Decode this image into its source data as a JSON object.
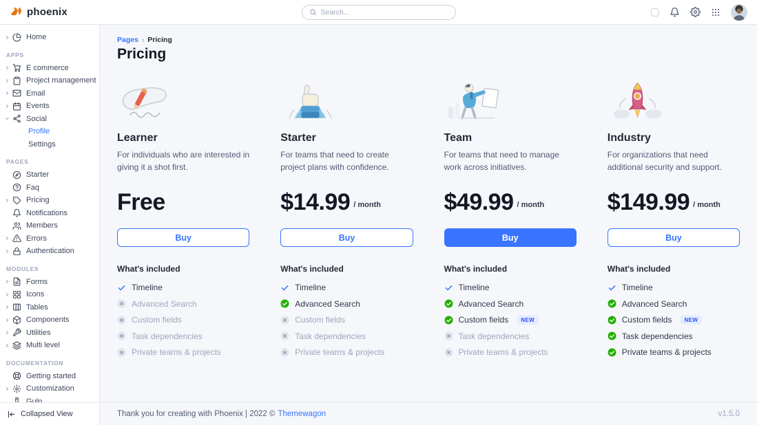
{
  "brand": {
    "name": "phoenix",
    "logo_icon": "phoenix-bird-icon"
  },
  "topbar": {
    "search": {
      "placeholder": "Search...",
      "icon": "search-icon"
    },
    "action_icons": [
      "theme-toggle",
      "bell-icon",
      "gear-icon",
      "apps-grid-icon",
      "avatar"
    ]
  },
  "colors": {
    "primary": "#3874ff",
    "success": "#23b000",
    "muted": "#9fa6bc",
    "background": "#f5f7fa"
  },
  "sidebar": {
    "sections": [
      {
        "label": null,
        "items": [
          {
            "label": "Home",
            "icon": "pie-chart-icon",
            "chevron": true
          }
        ]
      },
      {
        "label": "APPS",
        "items": [
          {
            "label": "E commerce",
            "icon": "cart-icon",
            "chevron": true
          },
          {
            "label": "Project management",
            "icon": "clipboard-icon",
            "chevron": true
          },
          {
            "label": "Email",
            "icon": "mail-icon",
            "chevron": true
          },
          {
            "label": "Events",
            "icon": "calendar-icon",
            "chevron": true
          },
          {
            "label": "Social",
            "icon": "share-icon",
            "chevron": true,
            "expanded": true,
            "children": [
              {
                "label": "Profile",
                "active": true
              },
              {
                "label": "Settings"
              }
            ]
          }
        ]
      },
      {
        "label": "PAGES",
        "items": [
          {
            "label": "Starter",
            "icon": "compass-icon"
          },
          {
            "label": "Faq",
            "icon": "help-circle-icon"
          },
          {
            "label": "Pricing",
            "icon": "tag-icon",
            "chevron": true
          },
          {
            "label": "Notifications",
            "icon": "bell-icon"
          },
          {
            "label": "Members",
            "icon": "users-icon"
          },
          {
            "label": "Errors",
            "icon": "alert-triangle-icon",
            "chevron": true
          },
          {
            "label": "Authentication",
            "icon": "lock-icon",
            "chevron": true
          }
        ]
      },
      {
        "label": "MODULES",
        "items": [
          {
            "label": "Forms",
            "icon": "file-text-icon",
            "chevron": true
          },
          {
            "label": "Icons",
            "icon": "grid-icon",
            "chevron": true
          },
          {
            "label": "Tables",
            "icon": "table-icon",
            "chevron": true
          },
          {
            "label": "Components",
            "icon": "package-icon",
            "chevron": true
          },
          {
            "label": "Utilities",
            "icon": "tool-icon",
            "chevron": true
          },
          {
            "label": "Multi level",
            "icon": "layers-icon",
            "chevron": true
          }
        ]
      },
      {
        "label": "DOCUMENTATION",
        "items": [
          {
            "label": "Getting started",
            "icon": "life-ring-icon"
          },
          {
            "label": "Customization",
            "icon": "settings-icon",
            "chevron": true
          },
          {
            "label": "Gulp",
            "icon": "cup-icon"
          }
        ]
      }
    ],
    "collapse": {
      "label": "Collapsed View",
      "icon": "collapse-panel-icon"
    }
  },
  "page": {
    "breadcrumb": [
      {
        "label": "Pages"
      },
      {
        "label": "Pricing"
      }
    ],
    "breadcrumb_separator": "›",
    "title": "Pricing",
    "whats_included_label": "What's included"
  },
  "plans": [
    {
      "name": "Learner",
      "illustration": "writing-hand",
      "description": "For individuals who are interested in giving it a shot first.",
      "price": "Free",
      "period": "",
      "button": {
        "label": "Buy",
        "variant": "outline"
      },
      "features": [
        {
          "label": "Timeline",
          "status": "basic"
        },
        {
          "label": "Advanced Search",
          "status": "excluded"
        },
        {
          "label": "Custom fields",
          "status": "excluded"
        },
        {
          "label": "Task dependencies",
          "status": "excluded"
        },
        {
          "label": "Private teams & projects",
          "status": "excluded"
        }
      ]
    },
    {
      "name": "Starter",
      "illustration": "thumbs-up",
      "description": "For teams that need to create project plans with confidence.",
      "price": "$14.99",
      "period": "/ month",
      "button": {
        "label": "Buy",
        "variant": "outline"
      },
      "features": [
        {
          "label": "Timeline",
          "status": "basic"
        },
        {
          "label": "Advanced Search",
          "status": "included"
        },
        {
          "label": "Custom fields",
          "status": "excluded"
        },
        {
          "label": "Task dependencies",
          "status": "excluded"
        },
        {
          "label": "Private teams & projects",
          "status": "excluded"
        }
      ]
    },
    {
      "name": "Team",
      "illustration": "presenting-person",
      "description": "For teams that need to manage work across initiatives.",
      "price": "$49.99",
      "period": "/ month",
      "button": {
        "label": "Buy",
        "variant": "solid"
      },
      "features": [
        {
          "label": "Timeline",
          "status": "basic"
        },
        {
          "label": "Advanced Search",
          "status": "included"
        },
        {
          "label": "Custom fields",
          "status": "included",
          "badge": "NEW"
        },
        {
          "label": "Task dependencies",
          "status": "excluded"
        },
        {
          "label": "Private teams & projects",
          "status": "excluded"
        }
      ]
    },
    {
      "name": "Industry",
      "illustration": "rocket-launch",
      "description": "For organizations that need additional security and support.",
      "price": "$149.99",
      "period": "/ month",
      "button": {
        "label": "Buy",
        "variant": "outline"
      },
      "features": [
        {
          "label": "Timeline",
          "status": "basic"
        },
        {
          "label": "Advanced Search",
          "status": "included"
        },
        {
          "label": "Custom fields",
          "status": "included",
          "badge": "NEW"
        },
        {
          "label": "Task dependencies",
          "status": "included"
        },
        {
          "label": "Private teams & projects",
          "status": "included"
        }
      ]
    }
  ],
  "footer": {
    "text": "Thank you for creating with Phoenix | 2022 ©",
    "link_label": "Themewagon",
    "version": "v1.5.0"
  }
}
